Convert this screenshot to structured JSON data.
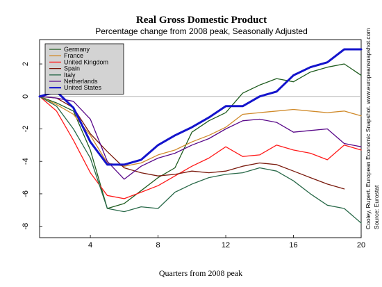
{
  "chart_data": {
    "type": "line",
    "title": "Real Gross Domestic Product",
    "subtitle": "Percentage change from 2008 peak, Seasonally Adjusted",
    "xlabel": "Quarters from 2008 peak",
    "ylabel": "",
    "xlim": [
      1,
      20
    ],
    "ylim": [
      -8.7,
      3.5
    ],
    "x_ticks": [
      4,
      8,
      12,
      16,
      20
    ],
    "y_ticks": [
      2,
      0,
      -2,
      -4,
      -6,
      -8
    ],
    "zero_line": true,
    "grid": false,
    "legend_position": "top-left",
    "credit_lines": [
      "Cooley, Rupert. European Economic Snapshot.  www.europeansnapshot.com",
      "Source:  Eurostat"
    ],
    "series": [
      {
        "name": "Germany",
        "color": "#1f5c1f",
        "width": 1.3,
        "x": [
          1,
          2,
          3,
          4,
          5,
          6,
          7,
          8,
          9,
          10,
          11,
          12,
          13,
          14,
          15,
          16,
          17,
          18,
          19,
          20
        ],
        "values": [
          0,
          -0.4,
          -0.9,
          -3.3,
          -6.9,
          -6.6,
          -5.8,
          -5.0,
          -4.4,
          -2.2,
          -1.5,
          -1.0,
          0.2,
          0.7,
          1.1,
          0.9,
          1.5,
          1.8,
          2.0,
          1.3
        ]
      },
      {
        "name": "France",
        "color": "#d08a2a",
        "width": 1.3,
        "x": [
          1,
          2,
          3,
          4,
          5,
          6,
          7,
          8,
          9,
          10,
          11,
          12,
          13,
          14,
          15,
          16,
          17,
          18,
          19,
          20
        ],
        "values": [
          0,
          -0.5,
          -1.1,
          -2.4,
          -4.1,
          -4.3,
          -4.1,
          -3.6,
          -3.3,
          -2.8,
          -2.4,
          -1.9,
          -1.1,
          -1.0,
          -0.9,
          -0.8,
          -0.9,
          -1.0,
          -0.9,
          -1.2
        ]
      },
      {
        "name": "United Kingdom",
        "color": "#ff1a1a",
        "width": 1.3,
        "x": [
          1,
          2,
          3,
          4,
          5,
          6,
          7,
          8,
          9,
          10,
          11,
          12,
          13,
          14,
          15,
          16,
          17,
          18,
          19,
          20
        ],
        "values": [
          0,
          -0.9,
          -2.7,
          -4.7,
          -6.1,
          -6.3,
          -5.9,
          -5.5,
          -4.9,
          -4.3,
          -3.8,
          -3.1,
          -3.7,
          -3.6,
          -3.0,
          -3.3,
          -3.5,
          -3.9,
          -3.0,
          -3.3
        ]
      },
      {
        "name": "Spain",
        "color": "#7a1a0d",
        "width": 1.3,
        "x": [
          1,
          2,
          3,
          4,
          5,
          6,
          7,
          8,
          9,
          10,
          11,
          12,
          13,
          14,
          15,
          16,
          17,
          18,
          19
        ],
        "values": [
          0,
          -0.1,
          -0.7,
          -2.3,
          -3.4,
          -4.4,
          -4.7,
          -4.9,
          -4.8,
          -4.6,
          -4.7,
          -4.6,
          -4.3,
          -4.1,
          -4.2,
          -4.6,
          -5.0,
          -5.4,
          -5.7
        ]
      },
      {
        "name": "Italy",
        "color": "#2a6a4a",
        "width": 1.3,
        "x": [
          1,
          2,
          3,
          4,
          5,
          6,
          7,
          8,
          9,
          10,
          11,
          12,
          13,
          14,
          15,
          16,
          17,
          18,
          19,
          20
        ],
        "values": [
          0,
          -0.6,
          -2.0,
          -3.8,
          -6.9,
          -7.1,
          -6.8,
          -6.9,
          -5.9,
          -5.4,
          -5.0,
          -4.8,
          -4.7,
          -4.4,
          -4.6,
          -5.2,
          -6.0,
          -6.7,
          -6.9,
          -7.8
        ]
      },
      {
        "name": "Netherlands",
        "color": "#5a0a8a",
        "width": 1.3,
        "x": [
          1,
          2,
          3,
          4,
          5,
          6,
          7,
          8,
          9,
          10,
          11,
          12,
          13,
          14,
          15,
          16,
          17,
          18,
          19,
          20
        ],
        "values": [
          0,
          -0.1,
          -0.3,
          -1.4,
          -4.0,
          -5.1,
          -4.3,
          -3.8,
          -3.5,
          -3.0,
          -2.6,
          -2.0,
          -1.5,
          -1.4,
          -1.6,
          -2.2,
          -2.1,
          -2.0,
          -2.9,
          -3.1
        ]
      },
      {
        "name": "United States",
        "color": "#1414cc",
        "width": 3,
        "x": [
          1,
          2,
          3,
          4,
          5,
          6,
          7,
          8,
          9,
          10,
          11,
          12,
          13,
          14,
          15,
          16,
          17,
          18,
          19,
          20
        ],
        "values": [
          0,
          0.3,
          -0.7,
          -2.8,
          -4.2,
          -4.2,
          -3.9,
          -3.0,
          -2.4,
          -1.9,
          -1.3,
          -0.6,
          -0.6,
          0,
          0.3,
          1.3,
          1.8,
          2.1,
          2.9,
          2.9
        ]
      }
    ]
  }
}
